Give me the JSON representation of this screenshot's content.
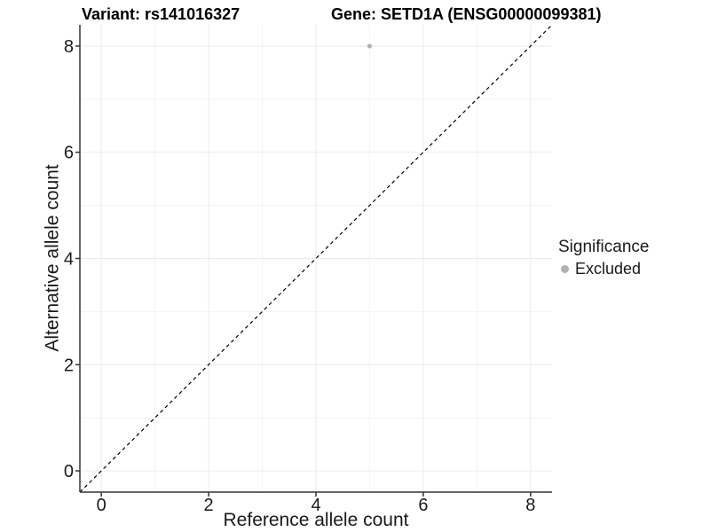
{
  "chart_data": {
    "type": "scatter",
    "title_left": "Variant: rs141016327",
    "title_right": "Gene: SETD1A (ENSG00000099381)",
    "xlabel": "Reference allele count",
    "ylabel": "Alternative allele count",
    "xlim": [
      -0.4,
      8.4
    ],
    "ylim": [
      -0.4,
      8.4
    ],
    "x_breaks": [
      0,
      2,
      4,
      6,
      8
    ],
    "y_breaks": [
      0,
      2,
      4,
      6,
      8
    ],
    "x_minor_breaks": [
      1,
      3,
      5,
      7
    ],
    "y_minor_breaks": [
      1,
      3,
      5,
      7
    ],
    "grid": true,
    "series": [
      {
        "name": "Excluded",
        "color": "#b0b0b0",
        "marker": "circle",
        "points": [
          {
            "x": 5,
            "y": 8
          }
        ]
      }
    ],
    "reference_line": {
      "type": "identity y=x",
      "style": "dashed",
      "color": "#000000"
    },
    "legend": {
      "position": "right",
      "title": "Significance",
      "items": [
        {
          "label": "Excluded",
          "color": "#b0b0b0",
          "marker": "circle"
        }
      ]
    }
  },
  "colors": {
    "background": "#ffffff",
    "grid_major": "#ebebeb",
    "grid_minor": "#f3f3f3",
    "axis": "#333333",
    "tick_text": "#1a1a1a",
    "title": "#000000",
    "diagonal": "#000000"
  }
}
